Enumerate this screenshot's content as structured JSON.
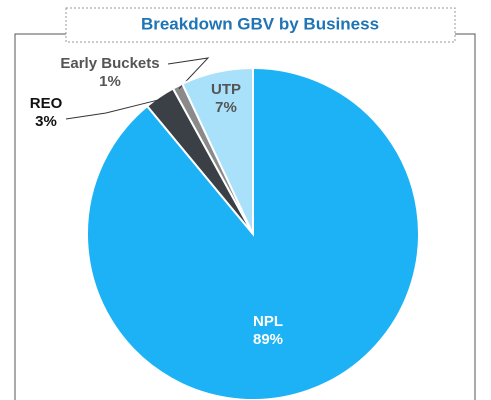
{
  "chart_data": {
    "type": "pie",
    "title": "Breakdown GBV by Business",
    "categories": [
      "NPL",
      "REO",
      "Early Buckets",
      "UTP"
    ],
    "values": [
      89,
      3,
      1,
      7
    ],
    "value_labels": [
      "89%",
      "3%",
      "1%",
      "7%"
    ],
    "colors": [
      "#1cb2f5",
      "#3b3f46",
      "#8a8a8a",
      "#a9e0fa"
    ]
  }
}
